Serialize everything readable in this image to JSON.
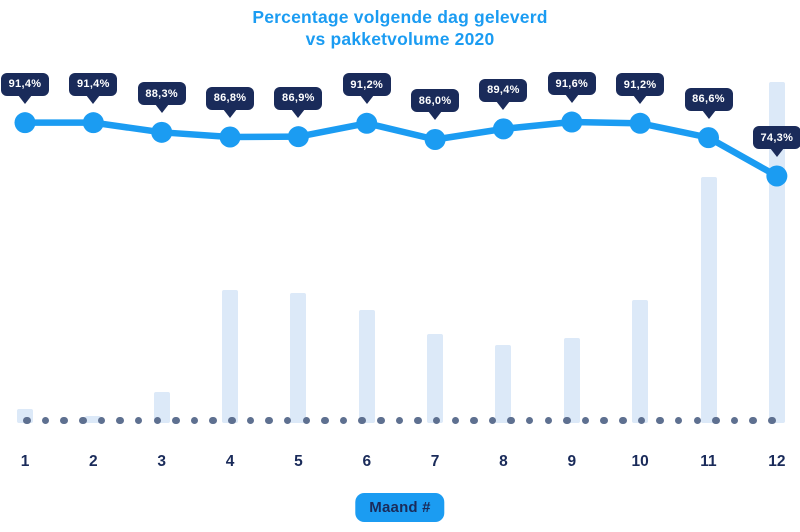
{
  "title": {
    "line1": "Percentage volgende dag geleverd",
    "line2": "vs pakketvolume 2020",
    "full": "Percentage volgende dag geleverd vs pakketvolume 2020"
  },
  "x_axis": {
    "badge_label": "Maand #",
    "tick_labels": [
      "1",
      "2",
      "3",
      "4",
      "5",
      "6",
      "7",
      "8",
      "9",
      "10",
      "11",
      "12"
    ]
  },
  "colors": {
    "accent_blue": "#1B9CF2",
    "navy": "#1A2B5A",
    "bar_fill": "#DCE9F8",
    "dot_gray_blue": "#5E7090",
    "tooltip_bg": "#1A2B5A",
    "tooltip_text": "#FFFFFF",
    "background": "#FFFFFF"
  },
  "chart_data": {
    "type": "line+bar",
    "title": "Percentage volgende dag geleverd vs pakketvolume 2020",
    "xlabel": "Maand #",
    "ylabel": "",
    "categories": [
      "1",
      "2",
      "3",
      "4",
      "5",
      "6",
      "7",
      "8",
      "9",
      "10",
      "11",
      "12"
    ],
    "series": [
      {
        "name": "Percentage volgende dag geleverd",
        "type": "line",
        "unit": "%",
        "values": [
          91.4,
          91.4,
          88.3,
          86.8,
          86.9,
          91.2,
          86.0,
          89.4,
          91.6,
          91.2,
          86.6,
          74.3
        ],
        "point_labels": [
          "91,4%",
          "91,4%",
          "88,3%",
          "86,8%",
          "86,9%",
          "91,2%",
          "86,0%",
          "89,4%",
          "91,6%",
          "91,2%",
          "86,6%",
          "74,3%"
        ]
      },
      {
        "name": "Pakketvolume 2020",
        "type": "bar",
        "unit": "relative volume (no axis shown, max month = 100)",
        "values": [
          4,
          2,
          9,
          39,
          38,
          33,
          26,
          23,
          25,
          36,
          72,
          100
        ]
      }
    ],
    "legend": "none",
    "gridlines": "none",
    "baseline": "dotted horizontal line at x-axis"
  }
}
